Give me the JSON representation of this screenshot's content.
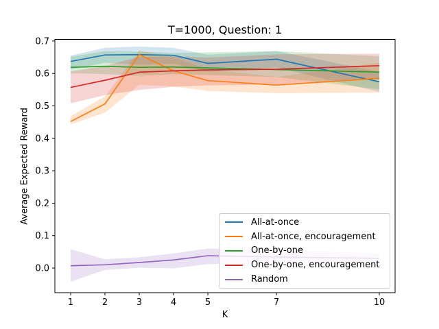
{
  "figure": {
    "background": "#ffffff"
  },
  "chart_data": {
    "type": "line",
    "title": "T=1000, Question: 1",
    "xlabel": "K",
    "ylabel": "Average Expected Reward",
    "x": [
      1,
      2,
      3,
      4,
      5,
      7,
      10
    ],
    "xtick_values": [
      1,
      2,
      3,
      4,
      5,
      7,
      10
    ],
    "xtick_labels": [
      "1",
      "2",
      "3",
      "4",
      "5",
      "7",
      "10"
    ],
    "ytick_values": [
      0.0,
      0.1,
      0.2,
      0.3,
      0.4,
      0.5,
      0.6,
      0.7
    ],
    "ytick_labels": [
      "0.0",
      "0.1",
      "0.2",
      "0.3",
      "0.4",
      "0.5",
      "0.6",
      "0.7"
    ],
    "xlim": [
      0.54,
      10.46
    ],
    "ylim": [
      -0.076,
      0.705
    ],
    "grid": false,
    "legend_position": "lower right",
    "band_alpha": 0.2,
    "axis_color": "#000000",
    "series": [
      {
        "name": "All-at-once",
        "color": "#1f77b4",
        "values": [
          0.637,
          0.657,
          0.658,
          0.656,
          0.631,
          0.644,
          0.574
        ],
        "band_low": [
          0.612,
          0.633,
          0.627,
          0.63,
          0.605,
          0.619,
          0.543
        ],
        "band_high": [
          0.655,
          0.679,
          0.683,
          0.679,
          0.658,
          0.669,
          0.605
        ]
      },
      {
        "name": "All-at-once, encouragement",
        "color": "#ff7f0e",
        "values": [
          0.452,
          0.506,
          0.658,
          0.608,
          0.578,
          0.564,
          0.585
        ],
        "band_low": [
          0.443,
          0.479,
          0.565,
          0.56,
          0.546,
          0.539,
          0.541
        ],
        "band_high": [
          0.468,
          0.529,
          0.671,
          0.651,
          0.613,
          0.589,
          0.633
        ]
      },
      {
        "name": "One-by-one",
        "color": "#2ca02c",
        "values": [
          0.619,
          0.622,
          0.619,
          0.62,
          0.617,
          0.612,
          0.604
        ],
        "band_low": [
          0.601,
          0.598,
          0.593,
          0.598,
          0.595,
          0.589,
          0.551
        ],
        "band_high": [
          0.651,
          0.669,
          0.667,
          0.663,
          0.665,
          0.669,
          0.653
        ]
      },
      {
        "name": "One-by-one, encouragement",
        "color": "#d62728",
        "values": [
          0.557,
          0.579,
          0.604,
          0.608,
          0.611,
          0.613,
          0.624
        ],
        "band_low": [
          0.508,
          0.533,
          0.549,
          0.559,
          0.563,
          0.566,
          0.583
        ],
        "band_high": [
          0.606,
          0.623,
          0.651,
          0.653,
          0.649,
          0.659,
          0.661
        ]
      },
      {
        "name": "Random",
        "color": "#9467bd",
        "values": [
          0.007,
          0.01,
          0.017,
          0.025,
          0.038,
          0.034,
          0.03
        ],
        "band_low": [
          -0.042,
          -0.006,
          0.001,
          -0.001,
          0.012,
          0.015,
          0.018
        ],
        "band_high": [
          0.058,
          0.027,
          0.033,
          0.045,
          0.06,
          0.058,
          0.044
        ]
      }
    ]
  }
}
